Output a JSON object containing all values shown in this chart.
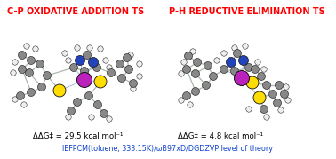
{
  "title_left": "C-P OXIDATIVE ADDITION TS",
  "title_right": "P-H REDUCTIVE ELIMINATION TS",
  "title_color": "#FF0000",
  "label_left": "ΔΔG‡ = 29.5 kcal mol⁻¹",
  "label_right": "ΔΔG‡ = 4.8 kcal mol⁻¹",
  "label_color": "#000000",
  "footer": "IEFPCM(toluene, 333.15K)/ωB97xD/DGDZVP level of theory",
  "footer_color": "#1144CC",
  "bg_color": "#FFFFFF",
  "bond_color": "#AABBAA",
  "coord_bond_color": "#AABBDD",
  "atom_gray": "#888888",
  "atom_gray_edge": "#444444",
  "atom_white": "#EEEEEE",
  "atom_blue": "#2244BB",
  "atom_yellow": "#FFDD00",
  "atom_magenta": "#BB22BB",
  "atom_black_edge": "#111111"
}
